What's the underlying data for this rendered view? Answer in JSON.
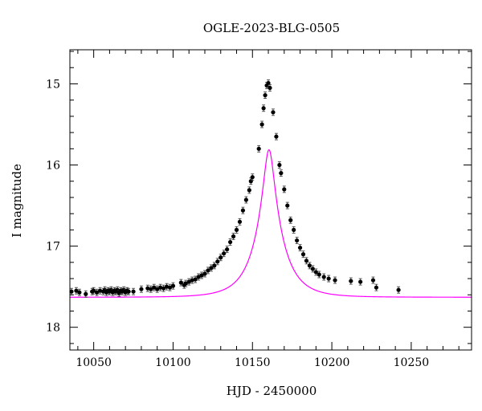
{
  "chart_data": {
    "type": "scatter",
    "title": "OGLE-2023-BLG-0505",
    "xlabel": "HJD - 2450000",
    "ylabel": "I magnitude",
    "xlim": [
      10035,
      10288
    ],
    "ylim": [
      18.28,
      14.58
    ],
    "x_ticks": [
      10050,
      10100,
      10150,
      10200,
      10250
    ],
    "y_ticks": [
      15,
      16,
      17,
      18
    ],
    "grid": false,
    "legend": "none",
    "series": [
      {
        "marker": "circle",
        "color": "#000000",
        "points": [
          [
            10036,
            17.56
          ],
          [
            10039,
            17.55
          ],
          [
            10041,
            17.57
          ],
          [
            10045,
            17.59
          ],
          [
            10049,
            17.56
          ],
          [
            10050,
            17.55
          ],
          [
            10052,
            17.57
          ],
          [
            10054,
            17.55
          ],
          [
            10056,
            17.56
          ],
          [
            10057,
            17.54
          ],
          [
            10058,
            17.57
          ],
          [
            10059,
            17.55
          ],
          [
            10060,
            17.56
          ],
          [
            10061,
            17.54
          ],
          [
            10062,
            17.57
          ],
          [
            10063,
            17.55
          ],
          [
            10064,
            17.56
          ],
          [
            10065,
            17.54
          ],
          [
            10066,
            17.58
          ],
          [
            10067,
            17.55
          ],
          [
            10068,
            17.56
          ],
          [
            10069,
            17.54
          ],
          [
            10070,
            17.57
          ],
          [
            10071,
            17.55
          ],
          [
            10072,
            17.56
          ],
          [
            10075,
            17.56
          ],
          [
            10080,
            17.53
          ],
          [
            10084,
            17.52
          ],
          [
            10086,
            17.53
          ],
          [
            10088,
            17.51
          ],
          [
            10090,
            17.53
          ],
          [
            10092,
            17.51
          ],
          [
            10094,
            17.52
          ],
          [
            10096,
            17.5
          ],
          [
            10098,
            17.51
          ],
          [
            10100,
            17.49
          ],
          [
            10105,
            17.45
          ],
          [
            10107,
            17.48
          ],
          [
            10108,
            17.46
          ],
          [
            10110,
            17.44
          ],
          [
            10112,
            17.42
          ],
          [
            10114,
            17.41
          ],
          [
            10116,
            17.38
          ],
          [
            10118,
            17.36
          ],
          [
            10120,
            17.34
          ],
          [
            10122,
            17.3
          ],
          [
            10124,
            17.27
          ],
          [
            10126,
            17.24
          ],
          [
            10128,
            17.19
          ],
          [
            10130,
            17.14
          ],
          [
            10132,
            17.09
          ],
          [
            10134,
            17.04
          ],
          [
            10136,
            16.95
          ],
          [
            10138,
            16.88
          ],
          [
            10140,
            16.8
          ],
          [
            10142,
            16.7
          ],
          [
            10144,
            16.56
          ],
          [
            10146,
            16.43
          ],
          [
            10148,
            16.31
          ],
          [
            10149,
            16.2
          ],
          [
            10150,
            16.15
          ],
          [
            10154,
            15.8
          ],
          [
            10156,
            15.5
          ],
          [
            10157,
            15.3
          ],
          [
            10158,
            15.14
          ],
          [
            10159,
            15.02
          ],
          [
            10160,
            14.99
          ],
          [
            10161,
            15.05
          ],
          [
            10163,
            15.35
          ],
          [
            10165,
            15.65
          ],
          [
            10167,
            16.0
          ],
          [
            10168,
            16.1
          ],
          [
            10170,
            16.3
          ],
          [
            10172,
            16.5
          ],
          [
            10174,
            16.68
          ],
          [
            10176,
            16.8
          ],
          [
            10178,
            16.93
          ],
          [
            10180,
            17.02
          ],
          [
            10182,
            17.1
          ],
          [
            10184,
            17.18
          ],
          [
            10186,
            17.24
          ],
          [
            10188,
            17.28
          ],
          [
            10190,
            17.32
          ],
          [
            10192,
            17.35
          ],
          [
            10195,
            17.38
          ],
          [
            10198,
            17.4
          ],
          [
            10202,
            17.42
          ],
          [
            10212,
            17.43
          ],
          [
            10218,
            17.44
          ],
          [
            10226,
            17.42
          ],
          [
            10228,
            17.51
          ],
          [
            10242,
            17.54
          ]
        ]
      },
      {
        "marker": "line",
        "color": "#ff00ff",
        "model": {
          "t0": 10160.4,
          "tE": 16.5,
          "u0": 0.19,
          "I_base": 17.63
        }
      }
    ]
  }
}
